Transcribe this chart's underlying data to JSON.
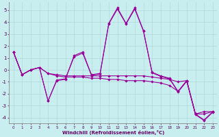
{
  "xlabel": "Windchill (Refroidissement éolien,°C)",
  "background_color": "#c8eef0",
  "grid_color": "#b0d8da",
  "line_color": "#990099",
  "xlim": [
    -0.5,
    23.5
  ],
  "ylim": [
    -4.5,
    5.7
  ],
  "yticks": [
    -4,
    -3,
    -2,
    -1,
    0,
    1,
    2,
    3,
    4,
    5
  ],
  "xticks": [
    0,
    1,
    2,
    3,
    4,
    5,
    6,
    7,
    8,
    9,
    10,
    11,
    12,
    13,
    14,
    15,
    16,
    17,
    18,
    19,
    20,
    21,
    22,
    23
  ],
  "lines": [
    {
      "x": [
        0,
        1,
        2,
        3,
        4,
        5,
        6,
        7,
        8,
        9,
        10,
        11,
        12,
        13,
        14,
        15,
        16,
        17,
        18,
        19,
        20,
        21,
        22,
        23
      ],
      "y": [
        1.5,
        -0.4,
        0.0,
        0.2,
        -2.6,
        -0.9,
        -0.8,
        1.2,
        1.5,
        -0.4,
        -0.3,
        3.9,
        5.2,
        3.9,
        5.2,
        3.3,
        -0.2,
        -0.5,
        -0.7,
        -1.8,
        -0.9,
        -3.7,
        -4.2,
        -3.5
      ]
    },
    {
      "x": [
        0,
        1,
        2,
        3,
        4,
        5,
        6,
        7,
        8,
        9,
        10,
        11,
        12,
        13,
        14,
        15,
        16,
        17,
        18,
        19,
        20,
        21,
        22,
        23
      ],
      "y": [
        1.5,
        -0.4,
        0.0,
        0.2,
        -2.6,
        -0.85,
        -0.75,
        1.1,
        1.4,
        -0.45,
        -0.35,
        3.85,
        5.1,
        3.85,
        5.1,
        3.25,
        -0.25,
        -0.55,
        -0.75,
        -1.85,
        -0.95,
        -3.75,
        -4.25,
        -3.55
      ]
    },
    {
      "x": [
        0,
        1,
        2,
        3,
        4,
        5,
        6,
        7,
        8,
        9,
        10,
        11,
        12,
        13,
        14,
        15,
        16,
        17,
        18,
        19,
        20,
        21,
        22,
        23
      ],
      "y": [
        1.5,
        -0.4,
        0.0,
        0.2,
        -0.3,
        -0.4,
        -0.5,
        -0.5,
        -0.5,
        -0.5,
        -0.5,
        -0.5,
        -0.5,
        -0.5,
        -0.5,
        -0.5,
        -0.6,
        -0.7,
        -0.8,
        -1.0,
        -0.9,
        -3.7,
        -3.7,
        -3.5
      ]
    },
    {
      "x": [
        0,
        1,
        2,
        3,
        4,
        5,
        6,
        7,
        8,
        9,
        10,
        11,
        12,
        13,
        14,
        15,
        16,
        17,
        18,
        19,
        20,
        21,
        22,
        23
      ],
      "y": [
        1.5,
        -0.4,
        0.0,
        0.2,
        -0.3,
        -0.5,
        -0.6,
        -0.6,
        -0.6,
        -0.7,
        -0.7,
        -0.8,
        -0.8,
        -0.9,
        -0.9,
        -0.9,
        -1.0,
        -1.1,
        -1.3,
        -1.8,
        -0.9,
        -3.7,
        -3.5,
        -3.5
      ]
    }
  ]
}
